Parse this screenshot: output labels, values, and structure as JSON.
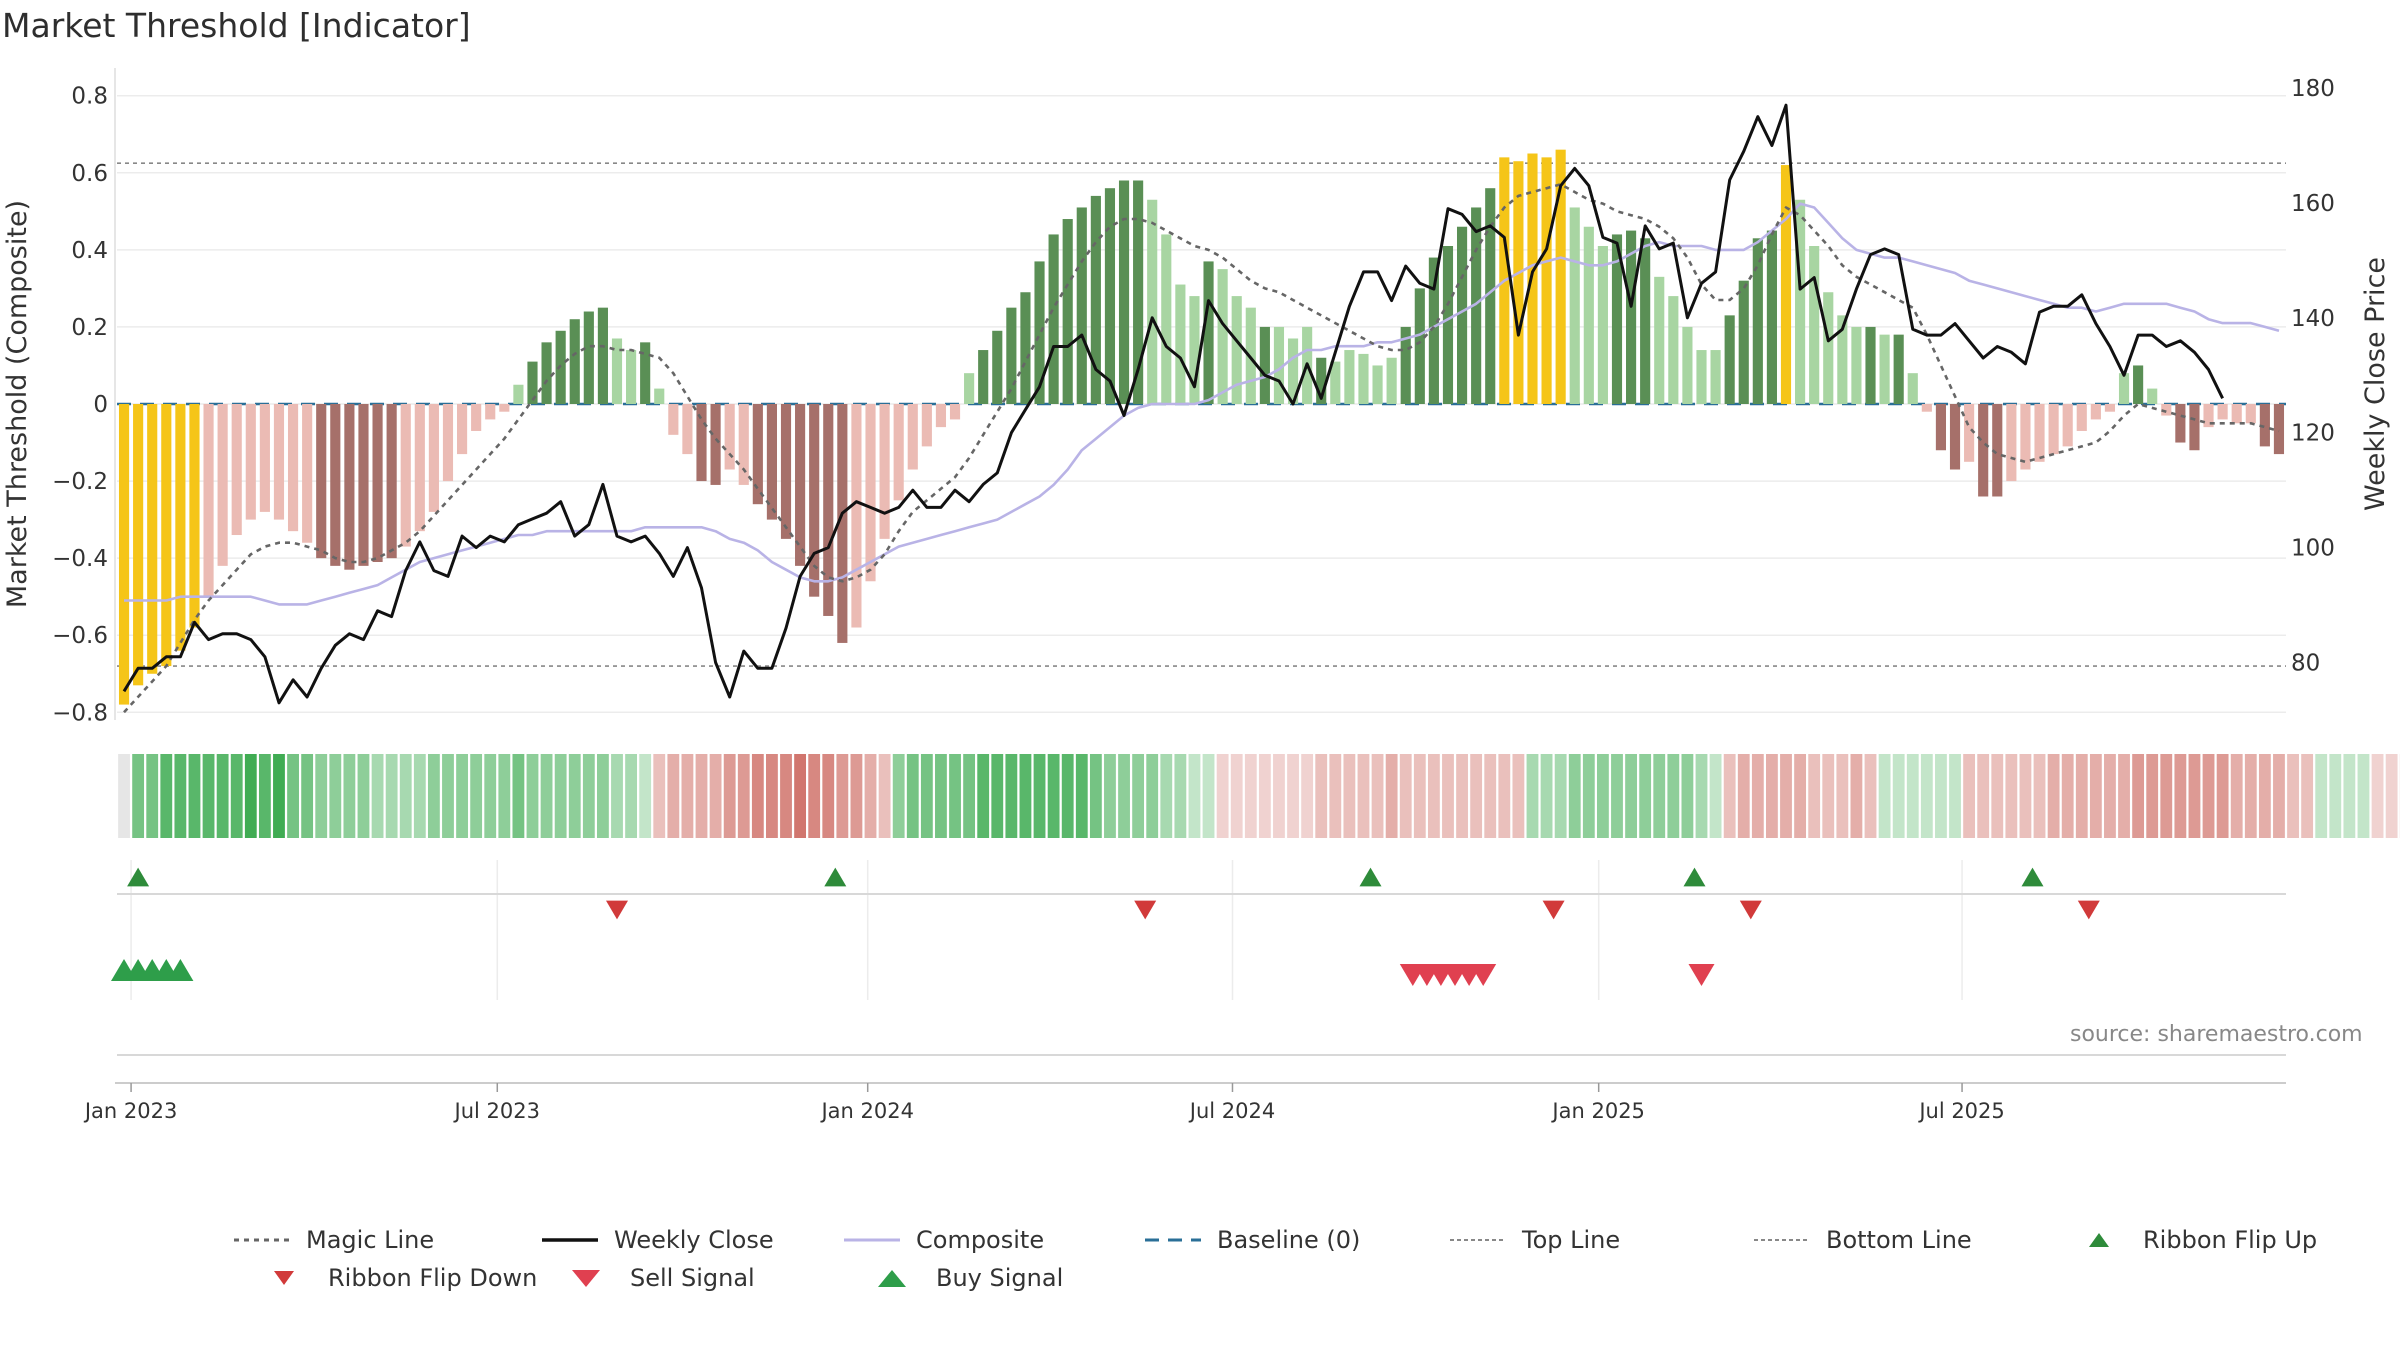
{
  "header": {
    "title": "Market Threshold [Indicator]"
  },
  "source": "source: sharemaestro.com",
  "chart_data": {
    "type": "bar",
    "title": "Market Threshold [Indicator]",
    "ylabel_left": "Market Threshold (Composite)",
    "ylabel_right": "Weekly Close Price",
    "ylim_left": [
      -0.82,
      0.82
    ],
    "ylim_right": [
      70,
      180
    ],
    "yticks_left": [
      0.8,
      0.6,
      0.4,
      0.2,
      0,
      -0.2,
      -0.4,
      -0.6,
      -0.8
    ],
    "ytick_labels_left": [
      "0.8",
      "0.6",
      "0.4",
      "0.2",
      "0",
      "−0.2",
      "−0.4",
      "−0.6",
      "−0.8"
    ],
    "yticks_right": [
      180,
      160,
      140,
      120,
      100,
      80
    ],
    "x_tick_labels": [
      "Jan 2023",
      "Jul 2023",
      "Jan 2024",
      "Jul 2024",
      "Jan 2025",
      "Jul 2025"
    ],
    "x_tick_weeks": [
      0.5,
      26.5,
      52.8,
      78.7,
      104.7,
      130.5
    ],
    "top_line": 0.625,
    "bottom_line": -0.68,
    "baseline": 0,
    "composite_bars": [
      -0.78,
      -0.73,
      -0.7,
      -0.68,
      -0.64,
      -0.58,
      -0.5,
      -0.42,
      -0.34,
      -0.3,
      -0.28,
      -0.3,
      -0.33,
      -0.36,
      -0.4,
      -0.42,
      -0.43,
      -0.42,
      -0.41,
      -0.4,
      -0.37,
      -0.33,
      -0.28,
      -0.2,
      -0.13,
      -0.07,
      -0.04,
      -0.02,
      0.05,
      0.11,
      0.16,
      0.19,
      0.22,
      0.24,
      0.25,
      0.17,
      0.14,
      0.16,
      0.04,
      -0.08,
      -0.13,
      -0.2,
      -0.21,
      -0.17,
      -0.21,
      -0.26,
      -0.3,
      -0.35,
      -0.42,
      -0.5,
      -0.55,
      -0.62,
      -0.58,
      -0.46,
      -0.35,
      -0.25,
      -0.17,
      -0.11,
      -0.06,
      -0.04,
      0.08,
      0.14,
      0.19,
      0.25,
      0.29,
      0.37,
      0.44,
      0.48,
      0.51,
      0.54,
      0.56,
      0.58,
      0.58,
      0.53,
      0.44,
      0.31,
      0.28,
      0.37,
      0.35,
      0.28,
      0.25,
      0.2,
      0.2,
      0.17,
      0.2,
      0.12,
      0.11,
      0.14,
      0.13,
      0.1,
      0.12,
      0.2,
      0.3,
      0.38,
      0.41,
      0.46,
      0.51,
      0.56,
      0.64,
      0.63,
      0.65,
      0.64,
      0.66,
      0.51,
      0.46,
      0.41,
      0.44,
      0.45,
      0.43,
      0.33,
      0.28,
      0.2,
      0.14,
      0.14,
      0.23,
      0.32,
      0.43,
      0.45,
      0.62,
      0.53,
      0.41,
      0.29,
      0.23,
      0.2,
      0.2,
      0.18,
      0.18,
      0.08,
      -0.02,
      -0.12,
      -0.17,
      -0.15,
      -0.24,
      -0.24,
      -0.2,
      -0.17,
      -0.15,
      -0.13,
      -0.11,
      -0.07,
      -0.04,
      -0.02,
      0.08,
      0.1,
      0.04,
      -0.03,
      -0.1,
      -0.12,
      -0.06,
      -0.04,
      -0.05,
      -0.05,
      -0.11,
      -0.13
    ],
    "composite_bar_style": [
      "y",
      "y",
      "y",
      "y",
      "y",
      "y",
      "lr",
      "lr",
      "lr",
      "lr",
      "lr",
      "lr",
      "lr",
      "lr",
      "dr",
      "dr",
      "dr",
      "dr",
      "dr",
      "dr",
      "lr",
      "lr",
      "lr",
      "lr",
      "lr",
      "lr",
      "lr",
      "lr",
      "lg",
      "dg",
      "dg",
      "dg",
      "dg",
      "dg",
      "dg",
      "lg",
      "lg",
      "dg",
      "lg",
      "lr",
      "lr",
      "dr",
      "dr",
      "lr",
      "lr",
      "dr",
      "dr",
      "dr",
      "dr",
      "dr",
      "dr",
      "dr",
      "lr",
      "lr",
      "lr",
      "lr",
      "lr",
      "lr",
      "lr",
      "lr",
      "lg",
      "dg",
      "dg",
      "dg",
      "dg",
      "dg",
      "dg",
      "dg",
      "dg",
      "dg",
      "dg",
      "dg",
      "dg",
      "lg",
      "lg",
      "lg",
      "lg",
      "dg",
      "lg",
      "lg",
      "lg",
      "dg",
      "lg",
      "lg",
      "lg",
      "dg",
      "lg",
      "lg",
      "lg",
      "lg",
      "lg",
      "dg",
      "dg",
      "dg",
      "dg",
      "dg",
      "dg",
      "dg",
      "y",
      "y",
      "y",
      "y",
      "y",
      "lg",
      "lg",
      "lg",
      "dg",
      "dg",
      "dg",
      "lg",
      "lg",
      "lg",
      "lg",
      "lg",
      "dg",
      "dg",
      "dg",
      "dg",
      "y",
      "lg",
      "lg",
      "lg",
      "lg",
      "lg",
      "dg",
      "lg",
      "dg",
      "lg",
      "lr",
      "dr",
      "dr",
      "lr",
      "dr",
      "dr",
      "lr",
      "lr",
      "lr",
      "lr",
      "lr",
      "lr",
      "lr",
      "lr",
      "lg",
      "dg",
      "lg",
      "lr",
      "dr",
      "dr",
      "lr",
      "lr",
      "lr",
      "lr",
      "dr",
      "dr"
    ],
    "weekly_close": [
      75,
      79,
      79,
      81,
      81,
      87,
      84,
      85,
      85,
      84,
      81,
      73,
      77,
      74,
      79,
      83,
      85,
      84,
      89,
      88,
      96,
      101,
      96,
      95,
      102,
      100,
      102,
      101,
      104,
      105,
      106,
      108,
      102,
      104,
      111,
      102,
      101,
      102,
      99,
      95,
      100,
      93,
      80,
      74,
      82,
      79,
      79,
      86,
      95,
      99,
      100,
      106,
      108,
      107,
      106,
      107,
      110,
      107,
      107,
      110,
      108,
      111,
      113,
      120,
      124,
      128,
      135,
      135,
      137,
      131,
      129,
      123,
      131,
      140,
      135,
      133,
      128,
      143,
      139,
      136,
      133,
      130,
      129,
      125,
      132,
      126,
      134,
      142,
      148,
      148,
      143,
      149,
      146,
      145,
      159,
      158,
      155,
      156,
      154,
      137,
      148,
      152,
      163,
      166,
      163,
      154,
      153,
      142,
      156,
      152,
      153,
      140,
      146,
      148,
      164,
      169,
      175,
      170,
      177,
      145,
      147,
      136,
      138,
      145,
      151,
      152,
      151,
      138,
      137,
      137,
      139,
      136,
      133,
      135,
      134,
      132,
      141,
      142,
      142,
      144,
      139,
      135,
      130,
      137,
      137,
      135,
      136,
      134,
      131,
      126
    ],
    "composite_line": [
      -0.51,
      -0.51,
      -0.51,
      -0.51,
      -0.5,
      -0.5,
      -0.5,
      -0.5,
      -0.5,
      -0.5,
      -0.51,
      -0.52,
      -0.52,
      -0.52,
      -0.51,
      -0.5,
      -0.49,
      -0.48,
      -0.47,
      -0.45,
      -0.43,
      -0.41,
      -0.4,
      -0.39,
      -0.38,
      -0.37,
      -0.36,
      -0.35,
      -0.34,
      -0.34,
      -0.33,
      -0.33,
      -0.33,
      -0.33,
      -0.33,
      -0.33,
      -0.33,
      -0.32,
      -0.32,
      -0.32,
      -0.32,
      -0.32,
      -0.33,
      -0.35,
      -0.36,
      -0.38,
      -0.41,
      -0.43,
      -0.45,
      -0.46,
      -0.46,
      -0.45,
      -0.43,
      -0.41,
      -0.39,
      -0.37,
      -0.36,
      -0.35,
      -0.34,
      -0.33,
      -0.32,
      -0.31,
      -0.3,
      -0.28,
      -0.26,
      -0.24,
      -0.21,
      -0.17,
      -0.12,
      -0.09,
      -0.06,
      -0.03,
      -0.01,
      0,
      0,
      0,
      0,
      0.01,
      0.03,
      0.05,
      0.06,
      0.07,
      0.09,
      0.12,
      0.14,
      0.14,
      0.15,
      0.15,
      0.15,
      0.16,
      0.16,
      0.17,
      0.18,
      0.2,
      0.22,
      0.24,
      0.26,
      0.29,
      0.32,
      0.34,
      0.36,
      0.37,
      0.38,
      0.37,
      0.36,
      0.36,
      0.37,
      0.39,
      0.41,
      0.42,
      0.41,
      0.41,
      0.41,
      0.4,
      0.4,
      0.4,
      0.42,
      0.45,
      0.48,
      0.52,
      0.51,
      0.47,
      0.43,
      0.4,
      0.39,
      0.38,
      0.38,
      0.37,
      0.36,
      0.35,
      0.34,
      0.32,
      0.31,
      0.3,
      0.29,
      0.28,
      0.27,
      0.26,
      0.25,
      0.25,
      0.24,
      0.25,
      0.26,
      0.26,
      0.26,
      0.26,
      0.25,
      0.24,
      0.22,
      0.21,
      0.21,
      0.21,
      0.2,
      0.19
    ],
    "magic_line": [
      -0.8,
      -0.76,
      -0.72,
      -0.68,
      -0.62,
      -0.56,
      -0.51,
      -0.47,
      -0.43,
      -0.39,
      -0.37,
      -0.36,
      -0.36,
      -0.37,
      -0.38,
      -0.4,
      -0.41,
      -0.41,
      -0.4,
      -0.38,
      -0.36,
      -0.33,
      -0.29,
      -0.25,
      -0.21,
      -0.17,
      -0.13,
      -0.09,
      -0.04,
      0.01,
      0.06,
      0.1,
      0.13,
      0.15,
      0.15,
      0.14,
      0.14,
      0.13,
      0.12,
      0.08,
      0.02,
      -0.04,
      -0.09,
      -0.13,
      -0.17,
      -0.22,
      -0.27,
      -0.32,
      -0.37,
      -0.42,
      -0.45,
      -0.46,
      -0.45,
      -0.43,
      -0.39,
      -0.33,
      -0.28,
      -0.25,
      -0.22,
      -0.19,
      -0.14,
      -0.08,
      -0.02,
      0.04,
      0.11,
      0.18,
      0.25,
      0.31,
      0.37,
      0.42,
      0.46,
      0.48,
      0.48,
      0.47,
      0.45,
      0.43,
      0.41,
      0.4,
      0.38,
      0.35,
      0.32,
      0.3,
      0.29,
      0.27,
      0.25,
      0.23,
      0.21,
      0.19,
      0.17,
      0.15,
      0.14,
      0.14,
      0.16,
      0.2,
      0.26,
      0.33,
      0.4,
      0.46,
      0.51,
      0.54,
      0.55,
      0.56,
      0.57,
      0.55,
      0.53,
      0.52,
      0.5,
      0.49,
      0.48,
      0.46,
      0.43,
      0.38,
      0.31,
      0.27,
      0.27,
      0.3,
      0.36,
      0.44,
      0.51,
      0.49,
      0.45,
      0.41,
      0.36,
      0.33,
      0.31,
      0.29,
      0.27,
      0.25,
      0.18,
      0.1,
      0.02,
      -0.06,
      -0.1,
      -0.13,
      -0.14,
      -0.15,
      -0.14,
      -0.13,
      -0.12,
      -0.11,
      -0.1,
      -0.07,
      -0.03,
      0,
      -0.01,
      -0.02,
      -0.03,
      -0.04,
      -0.05,
      -0.05,
      -0.05,
      -0.05,
      -0.06,
      -0.07
    ],
    "ribbon_states": [
      0,
      4,
      4,
      5,
      5,
      5,
      5,
      5,
      5,
      6,
      5,
      6,
      4,
      4,
      3,
      3,
      3,
      3,
      2,
      2,
      2,
      2,
      3,
      3,
      3,
      3,
      3,
      3,
      4,
      3,
      3,
      3,
      3,
      3,
      3,
      2,
      2,
      1,
      -2,
      -3,
      -3,
      -3,
      -3,
      -4,
      -4,
      -5,
      -5,
      -5,
      -6,
      -5,
      -5,
      -4,
      -4,
      -3,
      -2,
      3,
      4,
      4,
      4,
      4,
      4,
      5,
      5,
      5,
      5,
      5,
      5,
      5,
      5,
      4,
      3,
      3,
      3,
      3,
      2,
      2,
      1,
      1,
      -1,
      -1,
      -1,
      -1,
      -1,
      -1,
      -1,
      -2,
      -2,
      -2,
      -2,
      -2,
      -3,
      -2,
      -2,
      -2,
      -2,
      -2,
      -2,
      -2,
      -2,
      -2,
      2,
      2,
      2,
      3,
      3,
      3,
      3,
      3,
      3,
      3,
      3,
      3,
      2,
      1,
      -2,
      -3,
      -3,
      -3,
      -3,
      -3,
      -2,
      -2,
      -2,
      -3,
      -2,
      1,
      1,
      1,
      1,
      1,
      1,
      -2,
      -2,
      -2,
      -2,
      -2,
      -2,
      -3,
      -3,
      -3,
      -3,
      -3,
      -3,
      -4,
      -4,
      -4,
      -4,
      -4,
      -4,
      -4,
      -3,
      -3,
      -3,
      -3,
      -2,
      -2,
      1,
      1,
      1,
      1,
      -1,
      -1,
      -1,
      -1,
      -1,
      -1
    ],
    "ribbon_flip_up_weeks": [
      1,
      50.5,
      88.5,
      111.5,
      135.5
    ],
    "ribbon_flip_down_weeks": [
      35,
      72.5,
      101.5,
      115.5,
      139.5
    ],
    "buy_signal_weeks": [
      0,
      1,
      2,
      3,
      4
    ],
    "sell_signal_weeks": [
      91.5,
      92.5,
      93.5,
      94.5,
      95.5,
      96.5,
      112
    ],
    "legend": [
      {
        "key": "magic",
        "label": "Magic Line"
      },
      {
        "key": "close",
        "label": "Weekly Close"
      },
      {
        "key": "composite",
        "label": "Composite"
      },
      {
        "key": "baseline",
        "label": "Baseline (0)"
      },
      {
        "key": "top",
        "label": "Top Line"
      },
      {
        "key": "bottom",
        "label": "Bottom Line"
      },
      {
        "key": "flipup",
        "label": "Ribbon Flip Up"
      },
      {
        "key": "flipdown",
        "label": "Ribbon Flip Down"
      },
      {
        "key": "sell",
        "label": "Sell Signal"
      },
      {
        "key": "buy",
        "label": "Buy Signal"
      }
    ]
  },
  "colors": {
    "yellow": "#f5c518",
    "dark_green": "#5a8f55",
    "light_green": "#a8d5a2",
    "dark_red": "#a6706a",
    "light_red": "#ebbbb4",
    "weekly_close": "#111111",
    "composite": "#b9b3e6",
    "magic": "#666666",
    "baseline": "#2a6f97",
    "ref_line": "#888888",
    "flip_up": "#2e8b3a",
    "flip_down": "#d13a3a",
    "buy": "#2e9e4a",
    "sell": "#e04050"
  }
}
